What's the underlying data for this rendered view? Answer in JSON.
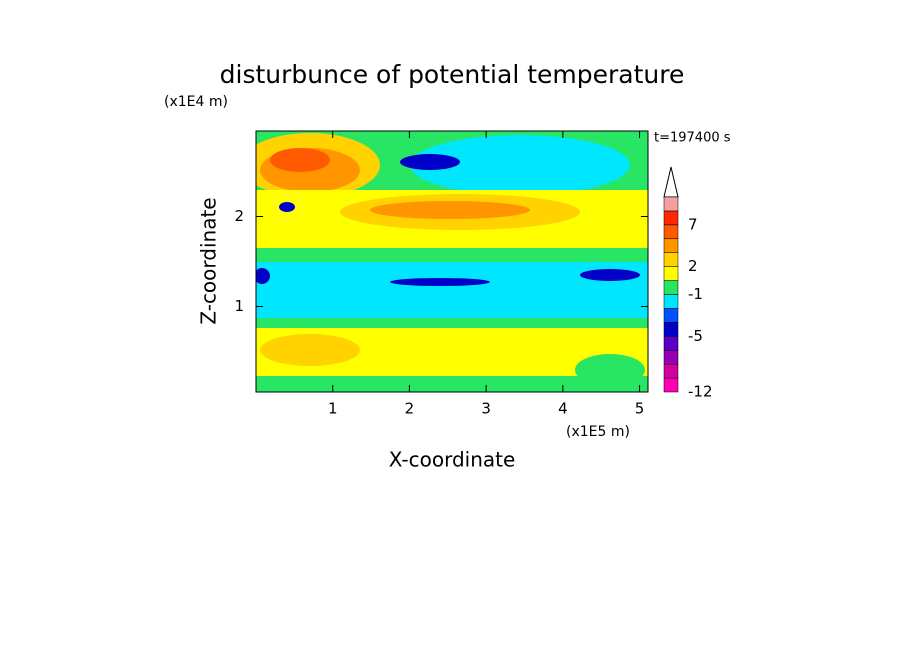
{
  "chart_data": {
    "type": "contourf",
    "title": "disturbunce of potential temperature",
    "y_scale_label": "(x1E4 m)",
    "x_scale_label": "(x1E5 m)",
    "xlabel": "X-coordinate",
    "ylabel": "Z-coordinate",
    "time_label": "t=197400 s",
    "xlim": [
      0,
      5.11
    ],
    "xticks": [
      1,
      2,
      3,
      4,
      5
    ],
    "ylim": [
      0.05,
      2.95
    ],
    "yticks": [
      1,
      2
    ],
    "colorbar": {
      "levels": [
        -12,
        -9,
        -7,
        -6,
        -5,
        -4,
        -2,
        -1,
        0,
        2,
        3,
        5,
        7,
        9,
        11
      ],
      "colors": [
        "#ff00b4",
        "#d200a0",
        "#9600b4",
        "#5a00c8",
        "#0000c8",
        "#0050ff",
        "#00e6ff",
        "#28e664",
        "#ffff00",
        "#ffd200",
        "#ff9600",
        "#ff5a00",
        "#ff2800",
        "#f5a0a0"
      ],
      "ticks": [
        -12,
        -5,
        -1,
        2,
        7
      ]
    }
  }
}
